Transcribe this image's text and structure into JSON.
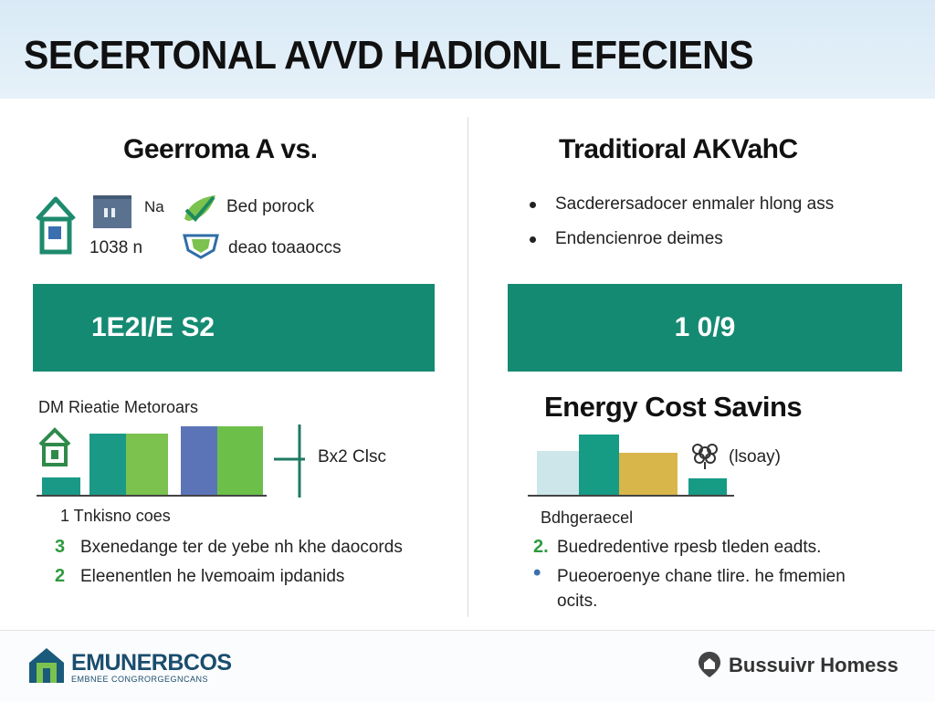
{
  "header": {
    "title": "SECERTONAL AVVD HADIONL EFECIENS"
  },
  "left": {
    "title": "Geerroma A vs.",
    "icon_labels": [
      "Na",
      "Bed porock",
      "1038 n",
      "deao toaaoccs"
    ],
    "band_value": "1E2I/E S2",
    "chart_title": "DM Rieatie Metoroars",
    "chart_side_label": "Bx2 Clsc",
    "chart_caption": "1 Tnkisno coes",
    "list": [
      {
        "marker": "3",
        "text": "Bxenedange ter de yebe nh khe daocords"
      },
      {
        "marker": "2",
        "text": "Eleenentlen he lvemoaim ipdanids"
      }
    ],
    "colors": {
      "teal": "#158a72",
      "green": "#6cc04a",
      "blue": "#5b74b8",
      "house": "#2f8a4a"
    }
  },
  "right": {
    "title": "Traditioral AKVahC",
    "bullets": [
      "Sacderersadocer enmaler hlong ass",
      "Endencienroe deimes"
    ],
    "band_value": "1 0/9",
    "chart_title": "Energy Cost Savins",
    "chart_side_label": "(lsoay)",
    "chart_caption": "Bdhgeraecel",
    "list": [
      {
        "marker": "2.",
        "text": "Buedredentive rpesb tleden eadts."
      },
      {
        "marker": "•",
        "text": "Pueoeroenye chane tlire. he fmemien"
      }
    ],
    "list_extra": "ocits.",
    "colors": {
      "light_blue": "#cde6ea",
      "teal": "#169b85",
      "mustard": "#d9b64a"
    }
  },
  "footer": {
    "left_brand": "EMUNERBCOS",
    "left_sub": "EMBNEE CONGRORGEGNCANS",
    "right_brand": "Bussuivr Homess"
  }
}
